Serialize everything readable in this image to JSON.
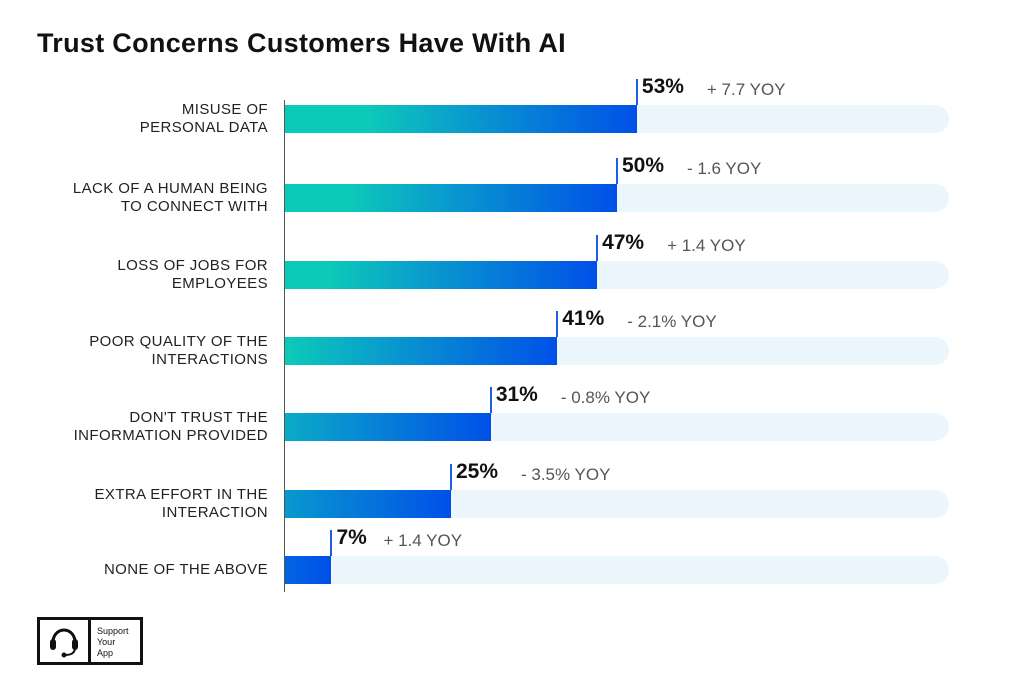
{
  "chart_data": {
    "type": "bar",
    "orientation": "horizontal",
    "title": "Trust Concerns Customers Have With AI",
    "xlim": [
      0,
      100
    ],
    "categories": [
      [
        "MISUSE OF",
        "PERSONAL DATA"
      ],
      [
        "LACK OF A HUMAN BEING",
        "TO CONNECT WITH"
      ],
      [
        "LOSS OF JOBS FOR",
        "EMPLOYEES"
      ],
      [
        "POOR QUALITY OF THE",
        "INTERACTIONS"
      ],
      [
        "DON'T TRUST THE",
        "INFORMATION PROVIDED"
      ],
      [
        "EXTRA EFFORT IN THE",
        "INTERACTION"
      ],
      [
        "NONE OF THE ABOVE"
      ]
    ],
    "values": [
      53,
      50,
      47,
      41,
      31,
      25,
      7
    ],
    "value_labels": [
      "53%",
      "50%",
      "47%",
      "41%",
      "31%",
      "25%",
      "7%"
    ],
    "yoy_labels": [
      "+ 7.7 YOY",
      "- 1.6 YOY",
      "+ 1.4 YOY",
      "- 2.1% YOY",
      "- 0.8% YOY",
      "- 3.5% YOY",
      "+ 1.4 YOY"
    ],
    "colors": {
      "gradient_start": "#0ccab8",
      "gradient_end": "#0050e8",
      "track": "#ecf6fd"
    }
  },
  "logo": {
    "text": [
      "Support",
      "Your",
      "App"
    ],
    "icon": "headset-icon"
  }
}
